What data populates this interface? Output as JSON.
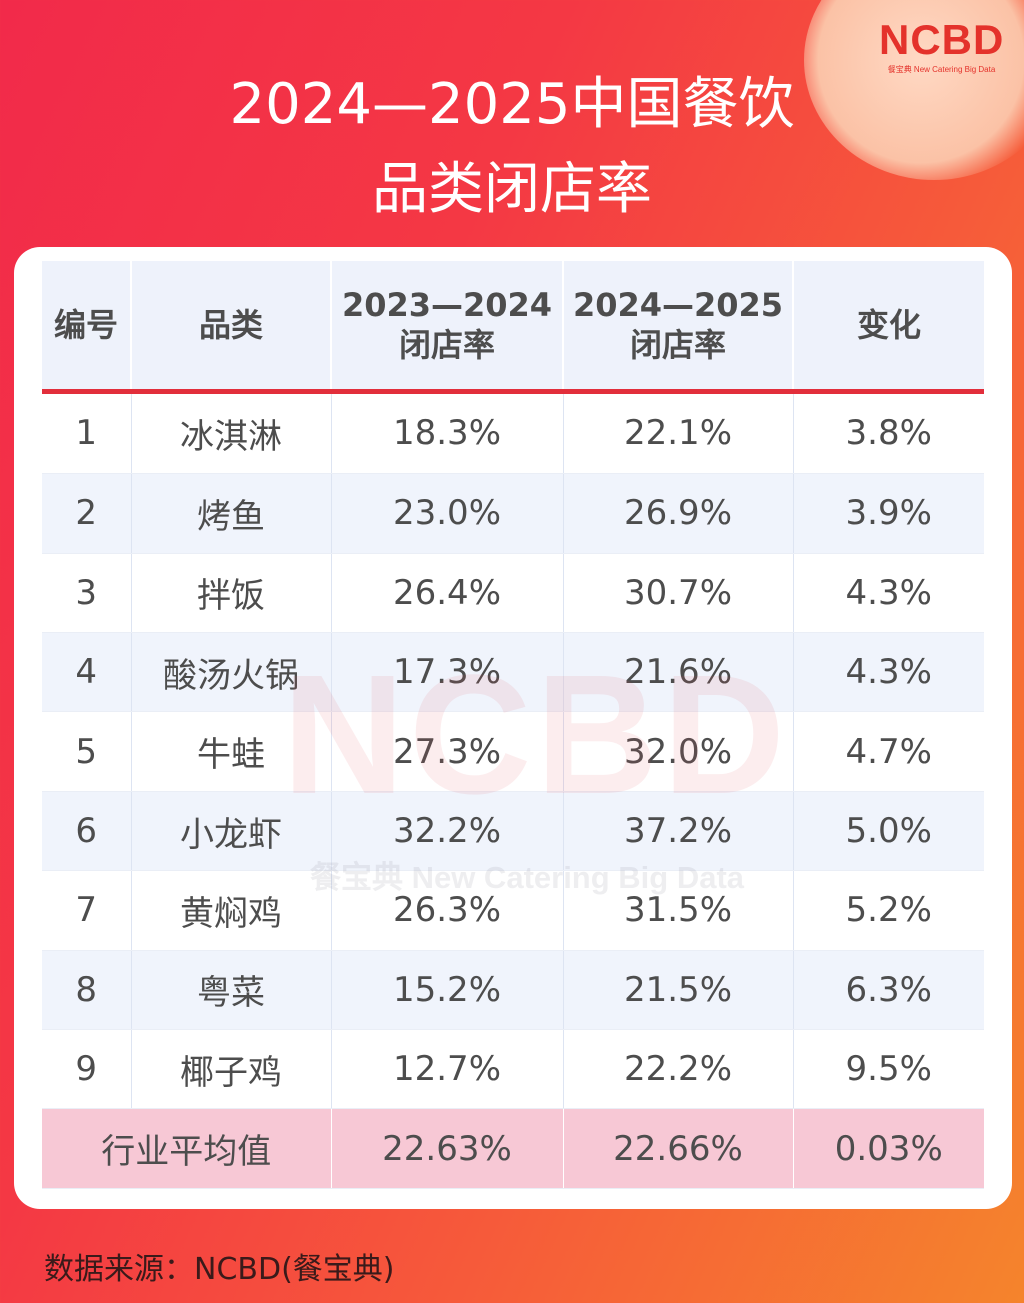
{
  "brand": {
    "logo": "NCBD",
    "tagline": "餐宝典 New Catering Big Data"
  },
  "title": {
    "line1": "2024—2025中国餐饮",
    "line2": "品类闭店率"
  },
  "table": {
    "headers": {
      "id": "编号",
      "category": "品类",
      "rate_2023_2024_line1": "2023—2024",
      "rate_2023_2024_line2": "闭店率",
      "rate_2024_2025_line1": "2024—2025",
      "rate_2024_2025_line2": "闭店率",
      "change": "变化"
    },
    "rows": [
      {
        "id": "1",
        "category": "冰淇淋",
        "rate_2023_2024": "18.3%",
        "rate_2024_2025": "22.1%",
        "change": "3.8%"
      },
      {
        "id": "2",
        "category": "烤鱼",
        "rate_2023_2024": "23.0%",
        "rate_2024_2025": "26.9%",
        "change": "3.9%"
      },
      {
        "id": "3",
        "category": "拌饭",
        "rate_2023_2024": "26.4%",
        "rate_2024_2025": "30.7%",
        "change": "4.3%"
      },
      {
        "id": "4",
        "category": "酸汤火锅",
        "rate_2023_2024": "17.3%",
        "rate_2024_2025": "21.6%",
        "change": "4.3%"
      },
      {
        "id": "5",
        "category": "牛蛙",
        "rate_2023_2024": "27.3%",
        "rate_2024_2025": "32.0%",
        "change": "4.7%"
      },
      {
        "id": "6",
        "category": "小龙虾",
        "rate_2023_2024": "32.2%",
        "rate_2024_2025": "37.2%",
        "change": "5.0%"
      },
      {
        "id": "7",
        "category": "黄焖鸡",
        "rate_2023_2024": "26.3%",
        "rate_2024_2025": "31.5%",
        "change": "5.2%"
      },
      {
        "id": "8",
        "category": "粤菜",
        "rate_2023_2024": "15.2%",
        "rate_2024_2025": "21.5%",
        "change": "6.3%"
      },
      {
        "id": "9",
        "category": "椰子鸡",
        "rate_2023_2024": "12.7%",
        "rate_2024_2025": "22.2%",
        "change": "9.5%"
      }
    ],
    "average": {
      "label": "行业平均值",
      "rate_2023_2024": "22.63%",
      "rate_2024_2025": "22.66%",
      "change": "0.03%"
    }
  },
  "watermark": {
    "logo": "NCBD",
    "tagline": "餐宝典 New Catering Big Data"
  },
  "source": "数据来源：NCBD(餐宝典)",
  "colors": {
    "accent_red": "#e22e3b",
    "header_bg": "#eef2fb",
    "average_row_bg": "#f7c8d5"
  }
}
